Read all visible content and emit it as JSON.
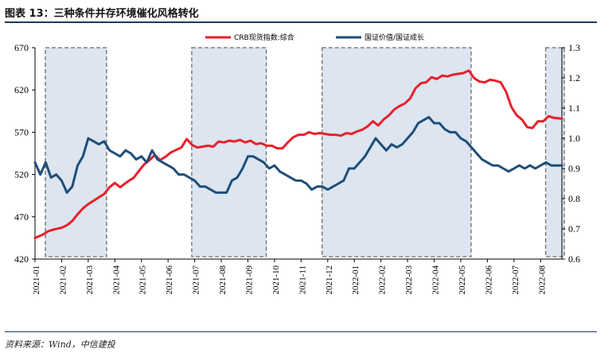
{
  "title": "图表 13：三种条件并存环境催化风格转化",
  "source": "资料来源：Wind，中信建投",
  "chart_data": {
    "type": "line",
    "y_left": {
      "ticks": [
        "420",
        "470",
        "520",
        "570",
        "620",
        "670"
      ],
      "min": 420,
      "max": 670
    },
    "y_right": {
      "ticks": [
        "0.6",
        "0.7",
        "0.8",
        "0.9",
        "1.0",
        "1.1",
        "1.2",
        "1.3"
      ],
      "min": 0.6,
      "max": 1.3
    },
    "x_ticks": [
      "2021-01",
      "2021-02",
      "2021-03",
      "2021-04",
      "2021-05",
      "2021-06",
      "2021-07",
      "2021-08",
      "2021-09",
      "2021-10",
      "2021-11",
      "2021-12",
      "2022-01",
      "2022-02",
      "2022-03",
      "2022-04",
      "2022-05",
      "2022-06",
      "2022-07",
      "2022-08"
    ],
    "x_index_range": [
      0,
      19.8
    ],
    "legend_position": "top",
    "shaded_periods": [
      [
        0,
        2.6
      ],
      [
        5.5,
        8.6
      ],
      [
        10.4,
        16.3
      ],
      [
        18.8,
        19.8
      ]
    ],
    "series": [
      {
        "name": "CRB现货指数:综合",
        "axis": "left",
        "color": "#e8202a",
        "x": [
          0,
          0.3,
          0.5,
          0.7,
          1.0,
          1.2,
          1.4,
          1.6,
          1.8,
          2.0,
          2.2,
          2.4,
          2.6,
          2.8,
          3.0,
          3.2,
          3.5,
          3.7,
          3.9,
          4.1,
          4.3,
          4.5,
          4.7,
          4.9,
          5.1,
          5.3,
          5.5,
          5.7,
          5.9,
          6.1,
          6.3,
          6.5,
          6.7,
          6.9,
          7.1,
          7.3,
          7.5,
          7.7,
          7.9,
          8.1,
          8.3,
          8.5,
          8.7,
          8.9,
          9.1,
          9.3,
          9.5,
          9.7,
          9.9,
          10.1,
          10.3,
          10.5,
          10.7,
          10.9,
          11.1,
          11.3,
          11.5,
          11.7,
          11.9,
          12.1,
          12.3,
          12.5,
          12.7,
          12.9,
          13.1,
          13.3,
          13.5,
          13.7,
          13.9,
          14.1,
          14.3,
          14.5,
          14.7,
          14.9,
          15.1,
          15.3,
          15.5,
          15.7,
          15.9,
          16.1,
          16.3,
          16.5,
          16.7,
          16.9,
          17.1,
          17.3,
          17.5,
          17.7,
          17.9,
          18.1,
          18.3,
          18.5,
          18.7,
          18.9,
          19.1,
          19.3,
          19.5,
          19.8
        ],
        "values": [
          445,
          449,
          453,
          455,
          457,
          460,
          465,
          473,
          480,
          485,
          489,
          493,
          497,
          505,
          510,
          505,
          512,
          516,
          524,
          532,
          537,
          543,
          537,
          541,
          546,
          549,
          552,
          562,
          555,
          552,
          553,
          554,
          553,
          559,
          558,
          560,
          559,
          561,
          558,
          560,
          556,
          557,
          554,
          554,
          551,
          551,
          558,
          564,
          567,
          567,
          570,
          568,
          569,
          568,
          567,
          567,
          566,
          569,
          568,
          571,
          573,
          577,
          583,
          578,
          585,
          590,
          597,
          601,
          604,
          610,
          622,
          628,
          629,
          635,
          633,
          637,
          636,
          638,
          639,
          640,
          643,
          634,
          630,
          629,
          632,
          631,
          629,
          618,
          600,
          590,
          585,
          576,
          575,
          583,
          583,
          589,
          587,
          586
        ]
      },
      {
        "name": "国证价值/国证成长",
        "axis": "right",
        "color": "#1f4e79",
        "x": [
          0,
          0.2,
          0.4,
          0.6,
          0.8,
          1.0,
          1.2,
          1.4,
          1.6,
          1.8,
          2.0,
          2.2,
          2.4,
          2.6,
          2.8,
          3.0,
          3.2,
          3.4,
          3.6,
          3.8,
          4.0,
          4.2,
          4.4,
          4.6,
          4.8,
          5.0,
          5.2,
          5.4,
          5.6,
          5.8,
          6.0,
          6.2,
          6.4,
          6.6,
          6.8,
          7.0,
          7.2,
          7.4,
          7.6,
          7.8,
          8.0,
          8.2,
          8.4,
          8.6,
          8.8,
          9.0,
          9.2,
          9.4,
          9.6,
          9.8,
          10.0,
          10.2,
          10.4,
          10.6,
          10.8,
          11.0,
          11.2,
          11.4,
          11.6,
          11.8,
          12.0,
          12.2,
          12.4,
          12.6,
          12.8,
          13.0,
          13.2,
          13.4,
          13.6,
          13.8,
          14.0,
          14.2,
          14.4,
          14.6,
          14.8,
          15.0,
          15.2,
          15.4,
          15.6,
          15.8,
          16.0,
          16.2,
          16.4,
          16.6,
          16.8,
          17.0,
          17.2,
          17.4,
          17.6,
          17.8,
          18.0,
          18.2,
          18.4,
          18.6,
          18.8,
          19.0,
          19.2,
          19.4,
          19.6,
          19.8
        ],
        "values": [
          0.92,
          0.88,
          0.92,
          0.87,
          0.88,
          0.86,
          0.82,
          0.84,
          0.91,
          0.94,
          1.0,
          0.99,
          0.98,
          0.99,
          0.96,
          0.95,
          0.94,
          0.96,
          0.95,
          0.93,
          0.94,
          0.92,
          0.96,
          0.93,
          0.92,
          0.91,
          0.9,
          0.88,
          0.88,
          0.87,
          0.86,
          0.84,
          0.84,
          0.83,
          0.82,
          0.82,
          0.82,
          0.86,
          0.87,
          0.9,
          0.94,
          0.94,
          0.93,
          0.92,
          0.9,
          0.91,
          0.89,
          0.88,
          0.87,
          0.86,
          0.86,
          0.85,
          0.83,
          0.84,
          0.84,
          0.83,
          0.84,
          0.85,
          0.86,
          0.9,
          0.9,
          0.92,
          0.94,
          0.97,
          1.0,
          0.98,
          0.96,
          0.98,
          0.97,
          0.98,
          1.0,
          1.02,
          1.05,
          1.06,
          1.07,
          1.05,
          1.05,
          1.03,
          1.02,
          1.02,
          1.0,
          0.99,
          0.97,
          0.95,
          0.93,
          0.92,
          0.91,
          0.91,
          0.9,
          0.89,
          0.9,
          0.91,
          0.9,
          0.91,
          0.9,
          0.91,
          0.92,
          0.91,
          0.91,
          0.91
        ]
      }
    ]
  }
}
